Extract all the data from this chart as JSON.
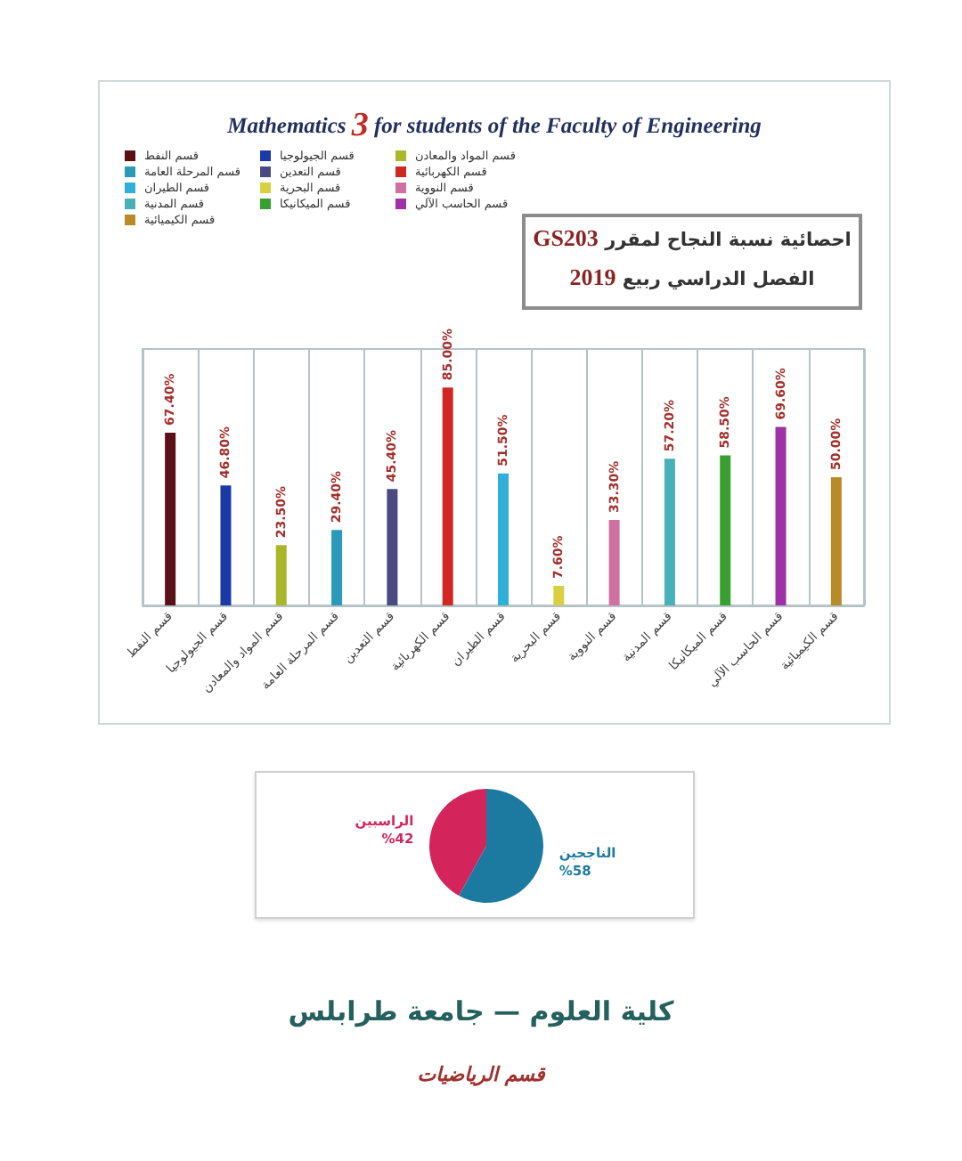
{
  "chart_data": [
    {
      "type": "bar",
      "title": "Mathematics 3 for students of the Faculty of Engineering",
      "annotations": [
        "احصائية نسبة النجاح لمقرر GS203",
        "الفصل الدراسي ربيع 2019"
      ],
      "categories": [
        "قسم النفط",
        "قسم الجيولوجيا",
        "قسم المواد والمعادن",
        "قسم المرحلة العامة",
        "قسم التعدين",
        "قسم الكهربائية",
        "قسم الطيران",
        "قسم البحرية",
        "قسم النووية",
        "قسم المدنية",
        "قسم الميكانيكا",
        "قسم الحاسب الآلي",
        "قسم الكيميائية"
      ],
      "stacked": true,
      "series": [
        {
          "name": "قسم النفط",
          "color": "#5a1016",
          "values": [
            67.4,
            null,
            null,
            null,
            null,
            null,
            null,
            null,
            null,
            null,
            null,
            null,
            null
          ],
          "value_labels": [
            "67.40%",
            null,
            null,
            null,
            null,
            null,
            null,
            null,
            null,
            null,
            null,
            null,
            null
          ]
        },
        {
          "name": "قسم الجيولوجيا",
          "color": "#1a3aa8",
          "values": [
            null,
            46.8,
            null,
            null,
            null,
            null,
            null,
            null,
            null,
            null,
            null,
            null,
            null
          ],
          "value_labels": [
            null,
            "46.80%",
            null,
            null,
            null,
            null,
            null,
            null,
            null,
            null,
            null,
            null,
            null
          ]
        },
        {
          "name": "قسم المواد والمعادن",
          "color": "#a8b82a",
          "values": [
            null,
            null,
            23.5,
            null,
            null,
            null,
            null,
            null,
            null,
            null,
            null,
            null,
            null
          ],
          "value_labels": [
            null,
            null,
            "23.50%",
            null,
            null,
            null,
            null,
            null,
            null,
            null,
            null,
            null,
            null
          ]
        },
        {
          "name": "قسم المرحلة العامة",
          "color": "#2a9ab8",
          "values": [
            null,
            null,
            null,
            29.4,
            null,
            null,
            null,
            null,
            null,
            null,
            null,
            null,
            null
          ],
          "value_labels": [
            null,
            null,
            null,
            "29.40%",
            null,
            null,
            null,
            null,
            null,
            null,
            null,
            null,
            null
          ]
        },
        {
          "name": "قسم التعدين",
          "color": "#4a4a80",
          "values": [
            null,
            null,
            null,
            null,
            45.4,
            null,
            null,
            null,
            null,
            null,
            null,
            null,
            null
          ],
          "value_labels": [
            null,
            null,
            null,
            null,
            "45.40%",
            null,
            null,
            null,
            null,
            null,
            null,
            null,
            null
          ]
        },
        {
          "name": "قسم الكهربائية",
          "color": "#d02820",
          "values": [
            null,
            null,
            null,
            null,
            null,
            85.0,
            null,
            null,
            null,
            null,
            null,
            null,
            null
          ],
          "value_labels": [
            null,
            null,
            null,
            null,
            null,
            "85.00%",
            null,
            null,
            null,
            null,
            null,
            null,
            null
          ]
        },
        {
          "name": "قسم الطيران",
          "color": "#30b0d8",
          "values": [
            null,
            null,
            null,
            null,
            null,
            null,
            51.5,
            null,
            null,
            null,
            null,
            null,
            null
          ],
          "value_labels": [
            null,
            null,
            null,
            null,
            null,
            null,
            "51.50%",
            null,
            null,
            null,
            null,
            null,
            null
          ]
        },
        {
          "name": "قسم البحرية",
          "color": "#d8d040",
          "values": [
            null,
            null,
            null,
            null,
            null,
            null,
            null,
            7.6,
            null,
            null,
            null,
            null,
            null
          ],
          "value_labels": [
            null,
            null,
            null,
            null,
            null,
            null,
            null,
            "7.60%",
            null,
            null,
            null,
            null,
            null
          ]
        },
        {
          "name": "قسم النووية",
          "color": "#d070a0",
          "values": [
            null,
            null,
            null,
            null,
            null,
            null,
            null,
            null,
            33.3,
            null,
            null,
            null,
            null
          ],
          "value_labels": [
            null,
            null,
            null,
            null,
            null,
            null,
            null,
            null,
            "33.30%",
            null,
            null,
            null,
            null
          ]
        },
        {
          "name": "قسم المدنية",
          "color": "#48b0b8",
          "values": [
            null,
            null,
            null,
            null,
            null,
            null,
            null,
            null,
            null,
            57.2,
            null,
            null,
            null
          ],
          "value_labels": [
            null,
            null,
            null,
            null,
            null,
            null,
            null,
            null,
            null,
            "57.20%",
            null,
            null,
            null
          ]
        },
        {
          "name": "قسم الميكانيكا",
          "color": "#38a030",
          "values": [
            null,
            null,
            null,
            null,
            null,
            null,
            null,
            null,
            null,
            null,
            58.5,
            null,
            null
          ],
          "value_labels": [
            null,
            null,
            null,
            null,
            null,
            null,
            null,
            null,
            null,
            null,
            "58.50%",
            null,
            null
          ]
        },
        {
          "name": "قسم الحاسب الآلي",
          "color": "#a030a8",
          "values": [
            null,
            null,
            null,
            null,
            null,
            null,
            null,
            null,
            null,
            null,
            null,
            69.6,
            null
          ],
          "value_labels": [
            null,
            null,
            null,
            null,
            null,
            null,
            null,
            null,
            null,
            null,
            null,
            "69.60%",
            null
          ]
        },
        {
          "name": "قسم الكيميائية",
          "color": "#b88a28",
          "values": [
            null,
            null,
            null,
            null,
            null,
            null,
            null,
            null,
            null,
            null,
            null,
            null,
            50.0
          ],
          "value_labels": [
            null,
            null,
            null,
            null,
            null,
            null,
            null,
            null,
            null,
            null,
            null,
            null,
            "50.00%"
          ]
        }
      ],
      "legend": "top left",
      "grid": "x",
      "tick_labels": "x"
    },
    {
      "type": "pie",
      "categories": [
        "الراسبين",
        "الناجحين"
      ],
      "values": [
        42,
        58
      ],
      "value_labels": [
        "%42",
        "%58"
      ],
      "colors": [
        "#d4245c",
        "#1c7aa0"
      ],
      "annotations": [
        "كلية العلوم — جامعة طرابلس",
        "قسم الرياضيات"
      ]
    }
  ]
}
